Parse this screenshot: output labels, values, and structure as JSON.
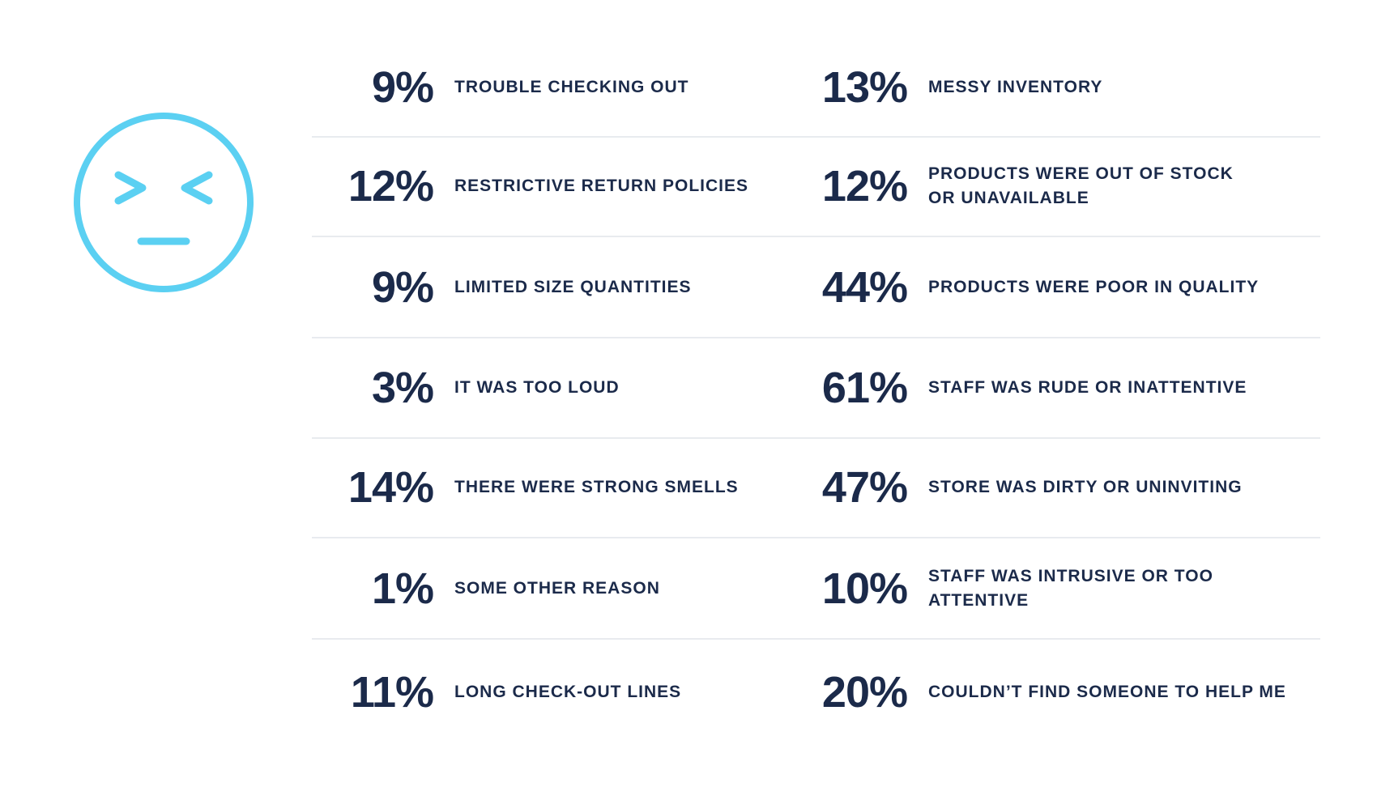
{
  "colors": {
    "face": "#5bd0f2",
    "text": "#1b2a4a",
    "divider": "#e8ebef"
  },
  "icon": "squinting-unhappy-face-icon",
  "chart_data": {
    "type": "table",
    "rows": [
      {
        "left": {
          "value": "9%",
          "label": "TROUBLE CHECKING OUT"
        },
        "right": {
          "value": "13%",
          "label": "MESSY INVENTORY"
        }
      },
      {
        "left": {
          "value": "12%",
          "label": "RESTRICTIVE RETURN POLICIES"
        },
        "right": {
          "value": "12%",
          "label": "PRODUCTS WERE OUT OF STOCK\nOR UNAVAILABLE"
        }
      },
      {
        "left": {
          "value": "9%",
          "label": "LIMITED SIZE QUANTITIES"
        },
        "right": {
          "value": "44%",
          "label": "PRODUCTS WERE POOR IN QUALITY"
        }
      },
      {
        "left": {
          "value": "3%",
          "label": "IT WAS TOO LOUD"
        },
        "right": {
          "value": "61%",
          "label": "STAFF WAS RUDE OR INATTENTIVE"
        }
      },
      {
        "left": {
          "value": "14%",
          "label": "THERE WERE STRONG SMELLS"
        },
        "right": {
          "value": "47%",
          "label": "STORE WAS DIRTY OR UNINVITING"
        }
      },
      {
        "left": {
          "value": "1%",
          "label": "SOME OTHER REASON"
        },
        "right": {
          "value": "10%",
          "label": "STAFF WAS INTRUSIVE OR TOO\nATTENTIVE"
        }
      },
      {
        "left": {
          "value": "11%",
          "label": "LONG CHECK-OUT LINES"
        },
        "right": {
          "value": "20%",
          "label": "COULDN’T FIND SOMEONE TO HELP ME"
        }
      }
    ]
  }
}
